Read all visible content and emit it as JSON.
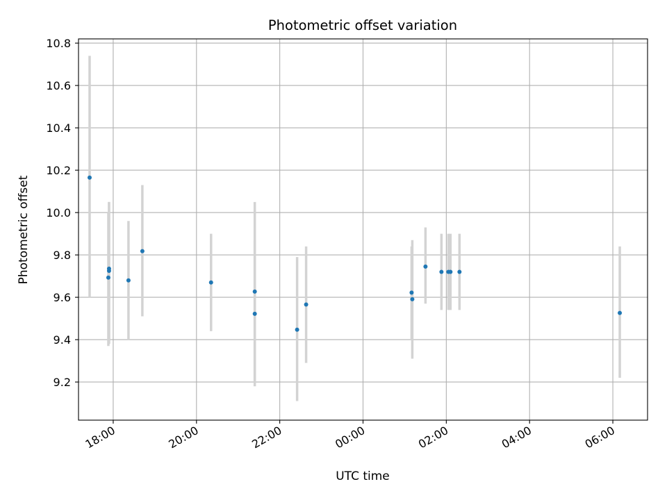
{
  "chart_data": {
    "type": "scatter",
    "title": "Photometric offset variation",
    "xlabel": "UTC time",
    "ylabel": "Photometric offset",
    "x_axis": {
      "kind": "time",
      "start": "17:10",
      "end": "06:50",
      "ticks": [
        "18:00",
        "20:00",
        "22:00",
        "00:00",
        "02:00",
        "04:00",
        "06:00"
      ],
      "tick_times": [
        "18:00",
        "20:00",
        "22:00",
        "00:00",
        "02:00",
        "04:00",
        "06:00"
      ]
    },
    "y_axis": {
      "ylim": [
        9.02,
        10.82
      ],
      "ticks": [
        9.2,
        9.4,
        9.6,
        9.8,
        10.0,
        10.2,
        10.4,
        10.6,
        10.8
      ],
      "tick_labels": [
        "9.2",
        "9.4",
        "9.6",
        "9.8",
        "10.0",
        "10.2",
        "10.4",
        "10.6",
        "10.8"
      ]
    },
    "grid": true,
    "series": [
      {
        "points": [
          {
            "x": "17:26",
            "y": 10.165,
            "yerr_low": 9.6,
            "yerr_high": 10.74
          },
          {
            "x": "17:54",
            "y": 9.735,
            "yerr_low": 9.4,
            "yerr_high": 10.05
          },
          {
            "x": "17:54",
            "y": 9.725,
            "yerr_low": 9.38,
            "yerr_high": 10.05
          },
          {
            "x": "17:53",
            "y": 9.693,
            "yerr_low": 9.37,
            "yerr_high": 10.0
          },
          {
            "x": "18:22",
            "y": 9.68,
            "yerr_low": 9.4,
            "yerr_high": 9.96
          },
          {
            "x": "18:42",
            "y": 9.818,
            "yerr_low": 9.51,
            "yerr_high": 10.13
          },
          {
            "x": "20:21",
            "y": 9.67,
            "yerr_low": 9.44,
            "yerr_high": 9.9
          },
          {
            "x": "21:24",
            "y": 9.627,
            "yerr_low": 9.2,
            "yerr_high": 10.05
          },
          {
            "x": "21:24",
            "y": 9.522,
            "yerr_low": 9.18,
            "yerr_high": 9.87
          },
          {
            "x": "22:25",
            "y": 9.447,
            "yerr_low": 9.11,
            "yerr_high": 9.79
          },
          {
            "x": "22:38",
            "y": 9.566,
            "yerr_low": 9.29,
            "yerr_high": 9.84
          },
          {
            "x": "01:10",
            "y": 9.622,
            "yerr_low": 9.4,
            "yerr_high": 9.84
          },
          {
            "x": "01:11",
            "y": 9.591,
            "yerr_low": 9.31,
            "yerr_high": 9.87
          },
          {
            "x": "01:30",
            "y": 9.745,
            "yerr_low": 9.57,
            "yerr_high": 9.93
          },
          {
            "x": "01:53",
            "y": 9.72,
            "yerr_low": 9.54,
            "yerr_high": 9.9
          },
          {
            "x": "02:03",
            "y": 9.72,
            "yerr_low": 9.54,
            "yerr_high": 9.9
          },
          {
            "x": "02:06",
            "y": 9.72,
            "yerr_low": 9.54,
            "yerr_high": 9.9
          },
          {
            "x": "02:19",
            "y": 9.72,
            "yerr_low": 9.54,
            "yerr_high": 9.9
          },
          {
            "x": "06:10",
            "y": 9.526,
            "yerr_low": 9.22,
            "yerr_high": 9.84
          }
        ]
      }
    ],
    "colors": {
      "point": "#1f77b4",
      "errorbar": "#d3d3d3",
      "grid": "#b0b0b0",
      "axes": "#000000"
    }
  }
}
